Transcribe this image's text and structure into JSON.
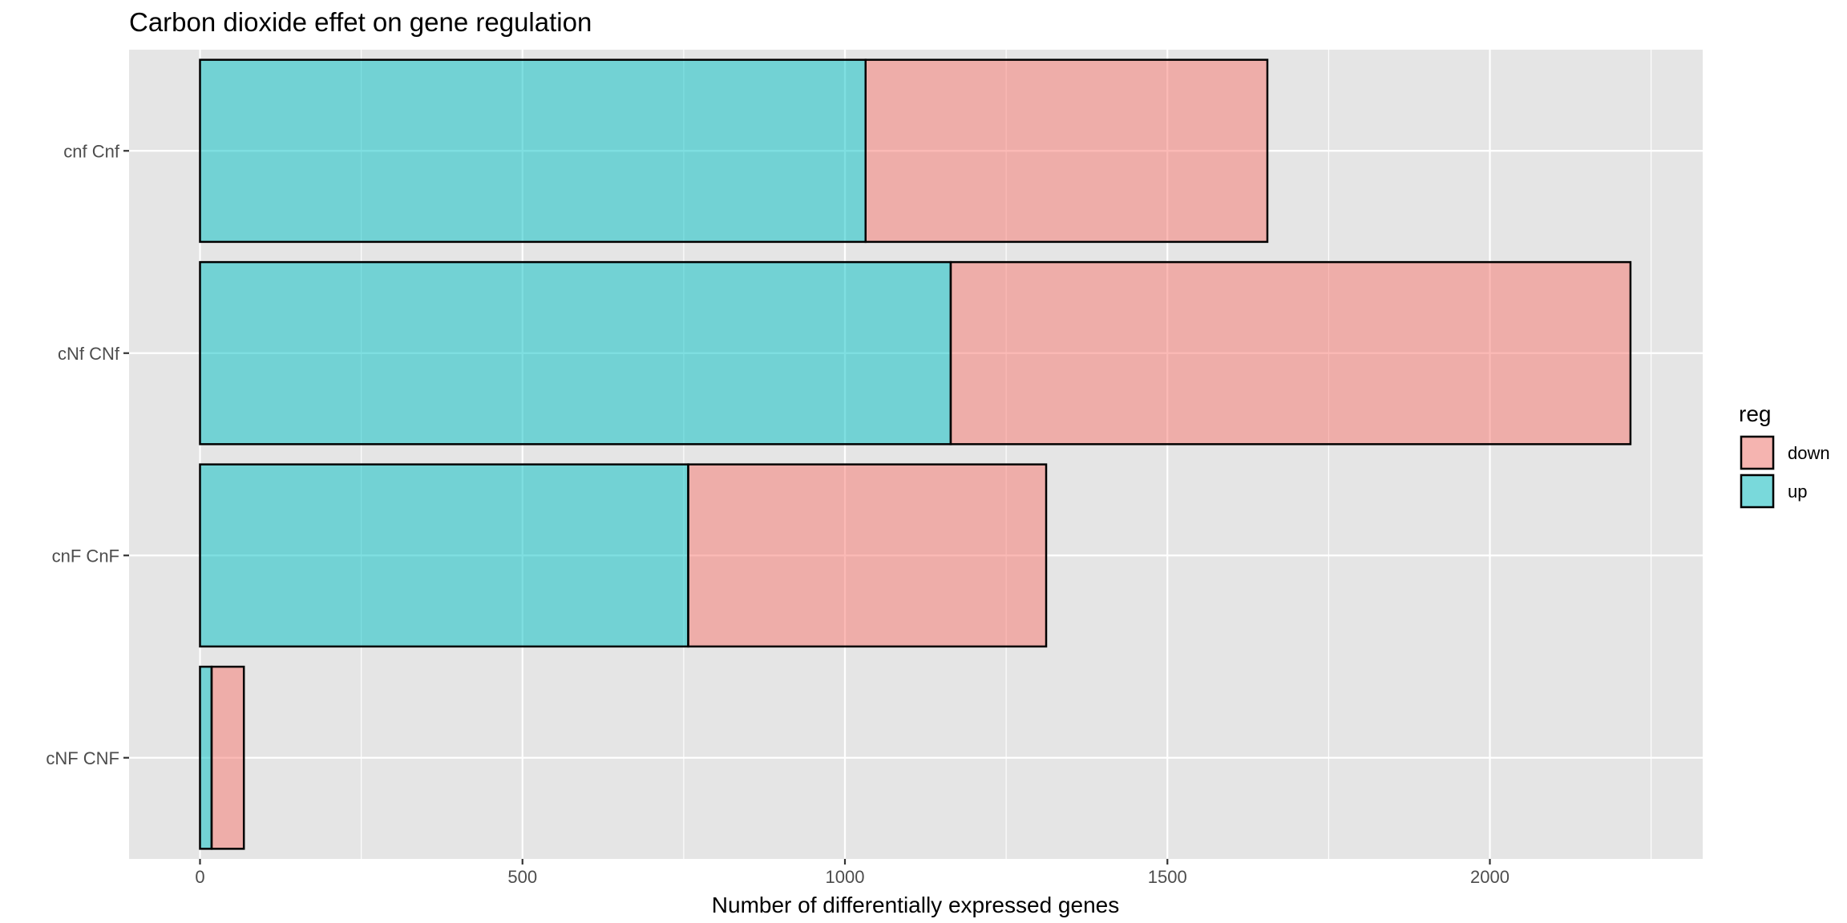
{
  "chart_data": {
    "type": "bar",
    "orientation": "horizontal",
    "stacked": true,
    "title": "Carbon dioxide effet on gene regulation",
    "xlabel": "Number of differentially expressed genes",
    "ylabel": "",
    "categories": [
      "cnf Cnf",
      "cNf CNf",
      "cnF CnF",
      "cNF CNF"
    ],
    "series": [
      {
        "name": "up",
        "values": [
          1032,
          1164,
          757,
          18
        ],
        "color": "#00BFC4"
      },
      {
        "name": "down",
        "values": [
          623,
          1054,
          555,
          50
        ],
        "color": "#F8766D"
      }
    ],
    "xlim": [
      -110,
      2330
    ],
    "xticks": [
      "0",
      "500",
      "1000",
      "1500",
      "2000"
    ],
    "xtick_values": [
      0,
      500,
      1000,
      1500,
      2000
    ],
    "legend": {
      "title": "reg",
      "entries": [
        "down",
        "up"
      ],
      "position": "right"
    },
    "grid": true,
    "panel_background": "#E5E5E5",
    "bar_outline": "#000000",
    "bar_alpha": 0.5
  }
}
